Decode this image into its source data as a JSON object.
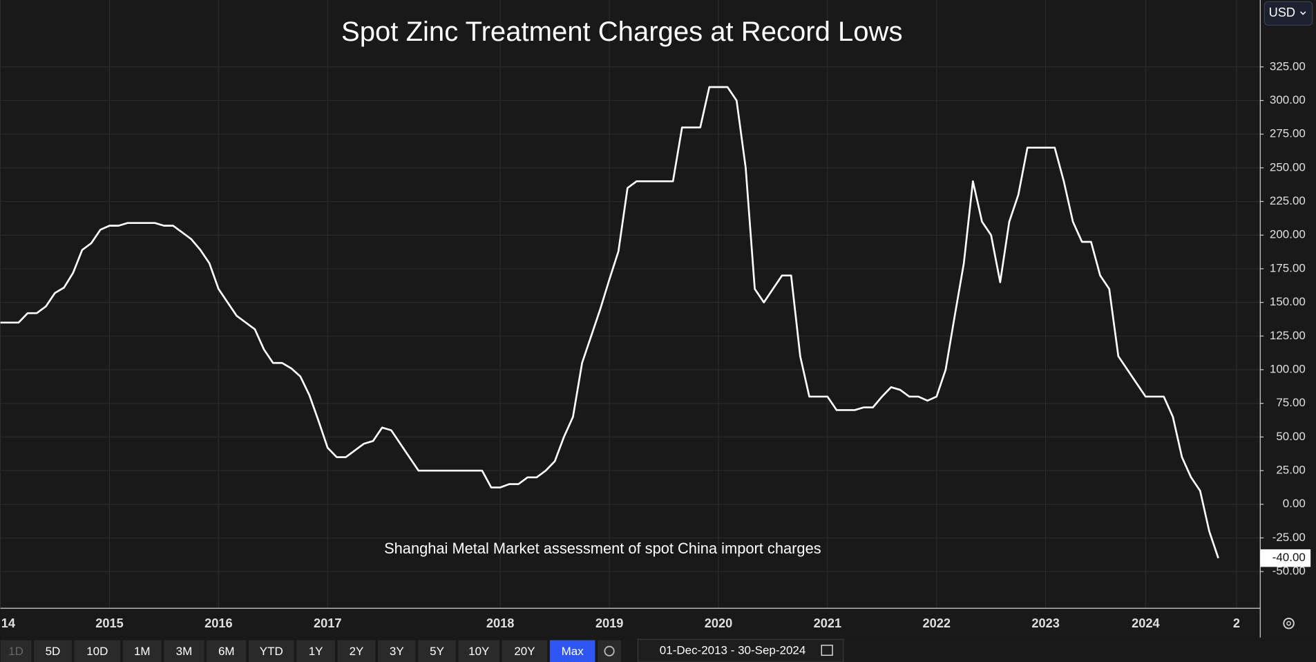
{
  "chart_data": {
    "type": "line",
    "title": "Spot Zinc Treatment Charges at Record Lows",
    "annotation": "Shanghai Metal Market assessment of spot China import charges",
    "categories": [
      "14",
      null,
      null,
      null,
      null,
      null,
      null,
      null,
      null,
      null,
      null,
      null,
      "2015",
      null,
      null,
      null,
      null,
      null,
      null,
      null,
      null,
      null,
      null,
      null,
      "2016",
      null,
      null,
      null,
      null,
      null,
      null,
      null,
      null,
      null,
      null,
      null,
      "2017",
      null,
      null,
      null,
      null,
      null,
      null,
      null,
      null,
      null,
      null,
      null,
      null,
      null,
      null,
      null,
      null,
      null,
      null,
      "2018",
      null,
      null,
      null,
      null,
      null,
      null,
      null,
      null,
      null,
      null,
      null,
      "2019",
      null,
      null,
      null,
      null,
      null,
      null,
      null,
      null,
      null,
      null,
      null,
      "2020",
      null,
      null,
      null,
      null,
      null,
      null,
      null,
      null,
      null,
      null,
      null,
      "2021",
      null,
      null,
      null,
      null,
      null,
      null,
      null,
      null,
      null,
      null,
      null,
      "2022",
      null,
      null,
      null,
      null,
      null,
      null,
      null,
      null,
      null,
      null,
      null,
      "2023",
      null,
      null,
      null,
      null,
      null,
      null,
      null,
      null,
      null,
      null,
      "2024",
      null,
      null,
      null,
      null,
      null,
      null,
      null,
      null,
      null,
      "2"
    ],
    "series": [
      {
        "color": "#ffffff",
        "values": [
          135,
          135,
          135,
          142,
          142,
          147,
          157,
          161,
          172,
          189,
          194,
          204,
          207,
          207,
          209,
          209,
          209,
          209,
          207,
          207,
          202,
          197,
          189,
          179,
          160,
          150,
          140,
          135,
          130,
          115,
          105,
          105,
          101,
          95,
          81,
          62,
          42,
          35,
          35,
          40,
          45,
          47,
          57,
          55,
          45,
          35,
          25,
          25,
          25,
          25,
          25,
          25,
          25,
          25,
          12.5,
          12.5,
          15,
          15,
          20,
          20,
          25,
          32,
          50,
          65,
          105,
          125,
          145,
          167,
          188,
          235,
          240,
          240,
          240,
          240,
          240,
          280,
          280,
          280,
          310,
          310,
          310,
          300,
          250,
          160,
          150,
          160,
          170,
          170,
          110,
          80,
          80,
          80,
          70,
          70,
          70,
          72,
          72,
          80,
          87,
          85,
          80,
          80,
          77,
          80,
          100,
          140,
          179,
          240,
          210,
          200,
          165,
          210,
          230,
          265,
          265,
          265,
          265,
          240,
          210,
          195,
          195,
          170,
          160,
          110,
          100,
          90,
          80,
          80,
          80,
          65,
          35,
          20,
          10,
          -20,
          -40,
          null,
          null
        ]
      }
    ],
    "last_value_label": "-40.00",
    "ylim": [
      -77.3,
      374.7
    ],
    "yticks": [
      {
        "value": -50,
        "label": "-50.00"
      },
      {
        "value": -25,
        "label": "-25.00"
      },
      {
        "value": 0,
        "label": "0.00"
      },
      {
        "value": 25,
        "label": "25.00"
      },
      {
        "value": 50,
        "label": "50.00"
      },
      {
        "value": 75,
        "label": "75.00"
      },
      {
        "value": 100,
        "label": "100.00"
      },
      {
        "value": 125,
        "label": "125.00"
      },
      {
        "value": 150,
        "label": "150.00"
      },
      {
        "value": 175,
        "label": "175.00"
      },
      {
        "value": 200,
        "label": "200.00"
      },
      {
        "value": 225,
        "label": "225.00"
      },
      {
        "value": 250,
        "label": "250.00"
      },
      {
        "value": 275,
        "label": "275.00"
      },
      {
        "value": 300,
        "label": "300.00"
      },
      {
        "value": 325,
        "label": "325.00"
      }
    ],
    "grid": true
  },
  "toolbar": {
    "ranges": [
      "1D",
      "5D",
      "10D",
      "1M",
      "3M",
      "6M",
      "YTD",
      "1Y",
      "2Y",
      "3Y",
      "5Y",
      "10Y",
      "20Y",
      "Max"
    ],
    "active": "Max",
    "date_range": "01-Dec-2013 - 30-Sep-2024",
    "currency": "USD"
  }
}
